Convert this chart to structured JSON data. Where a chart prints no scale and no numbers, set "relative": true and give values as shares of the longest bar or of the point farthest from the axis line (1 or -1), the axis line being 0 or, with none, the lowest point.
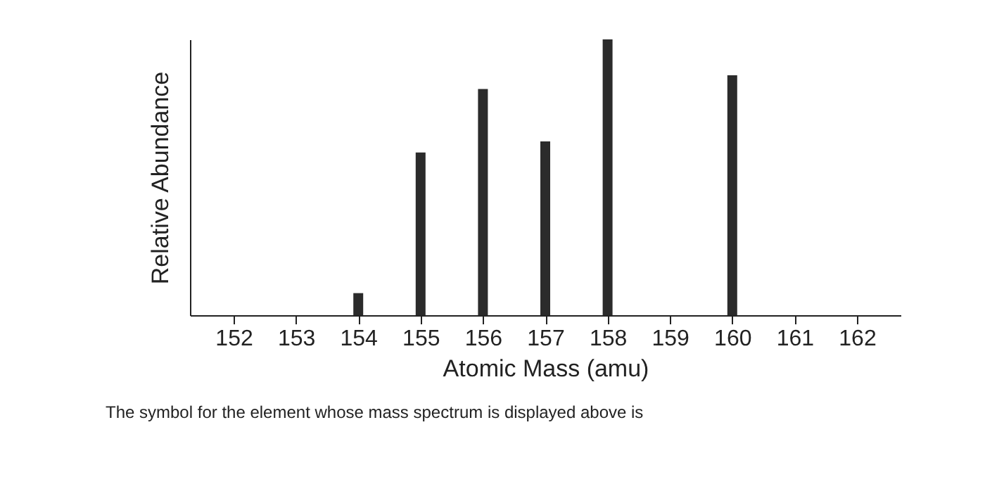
{
  "chart_data": {
    "type": "bar",
    "relative": true,
    "xlabel": "Atomic Mass (amu)",
    "ylabel": "Relative Abundance",
    "x": [
      154,
      155,
      156,
      157,
      158,
      160
    ],
    "values": [
      0.08,
      0.59,
      0.82,
      0.63,
      1,
      0.87
    ],
    "color": "#2b2b2b",
    "xlim": [
      151.3,
      162.7
    ],
    "xticks": [
      152,
      153,
      154,
      155,
      156,
      157,
      158,
      159,
      160,
      161,
      162
    ],
    "grid": false,
    "annotations": [
      "The symbol for the element whose mass spectrum is displayed above is"
    ]
  }
}
